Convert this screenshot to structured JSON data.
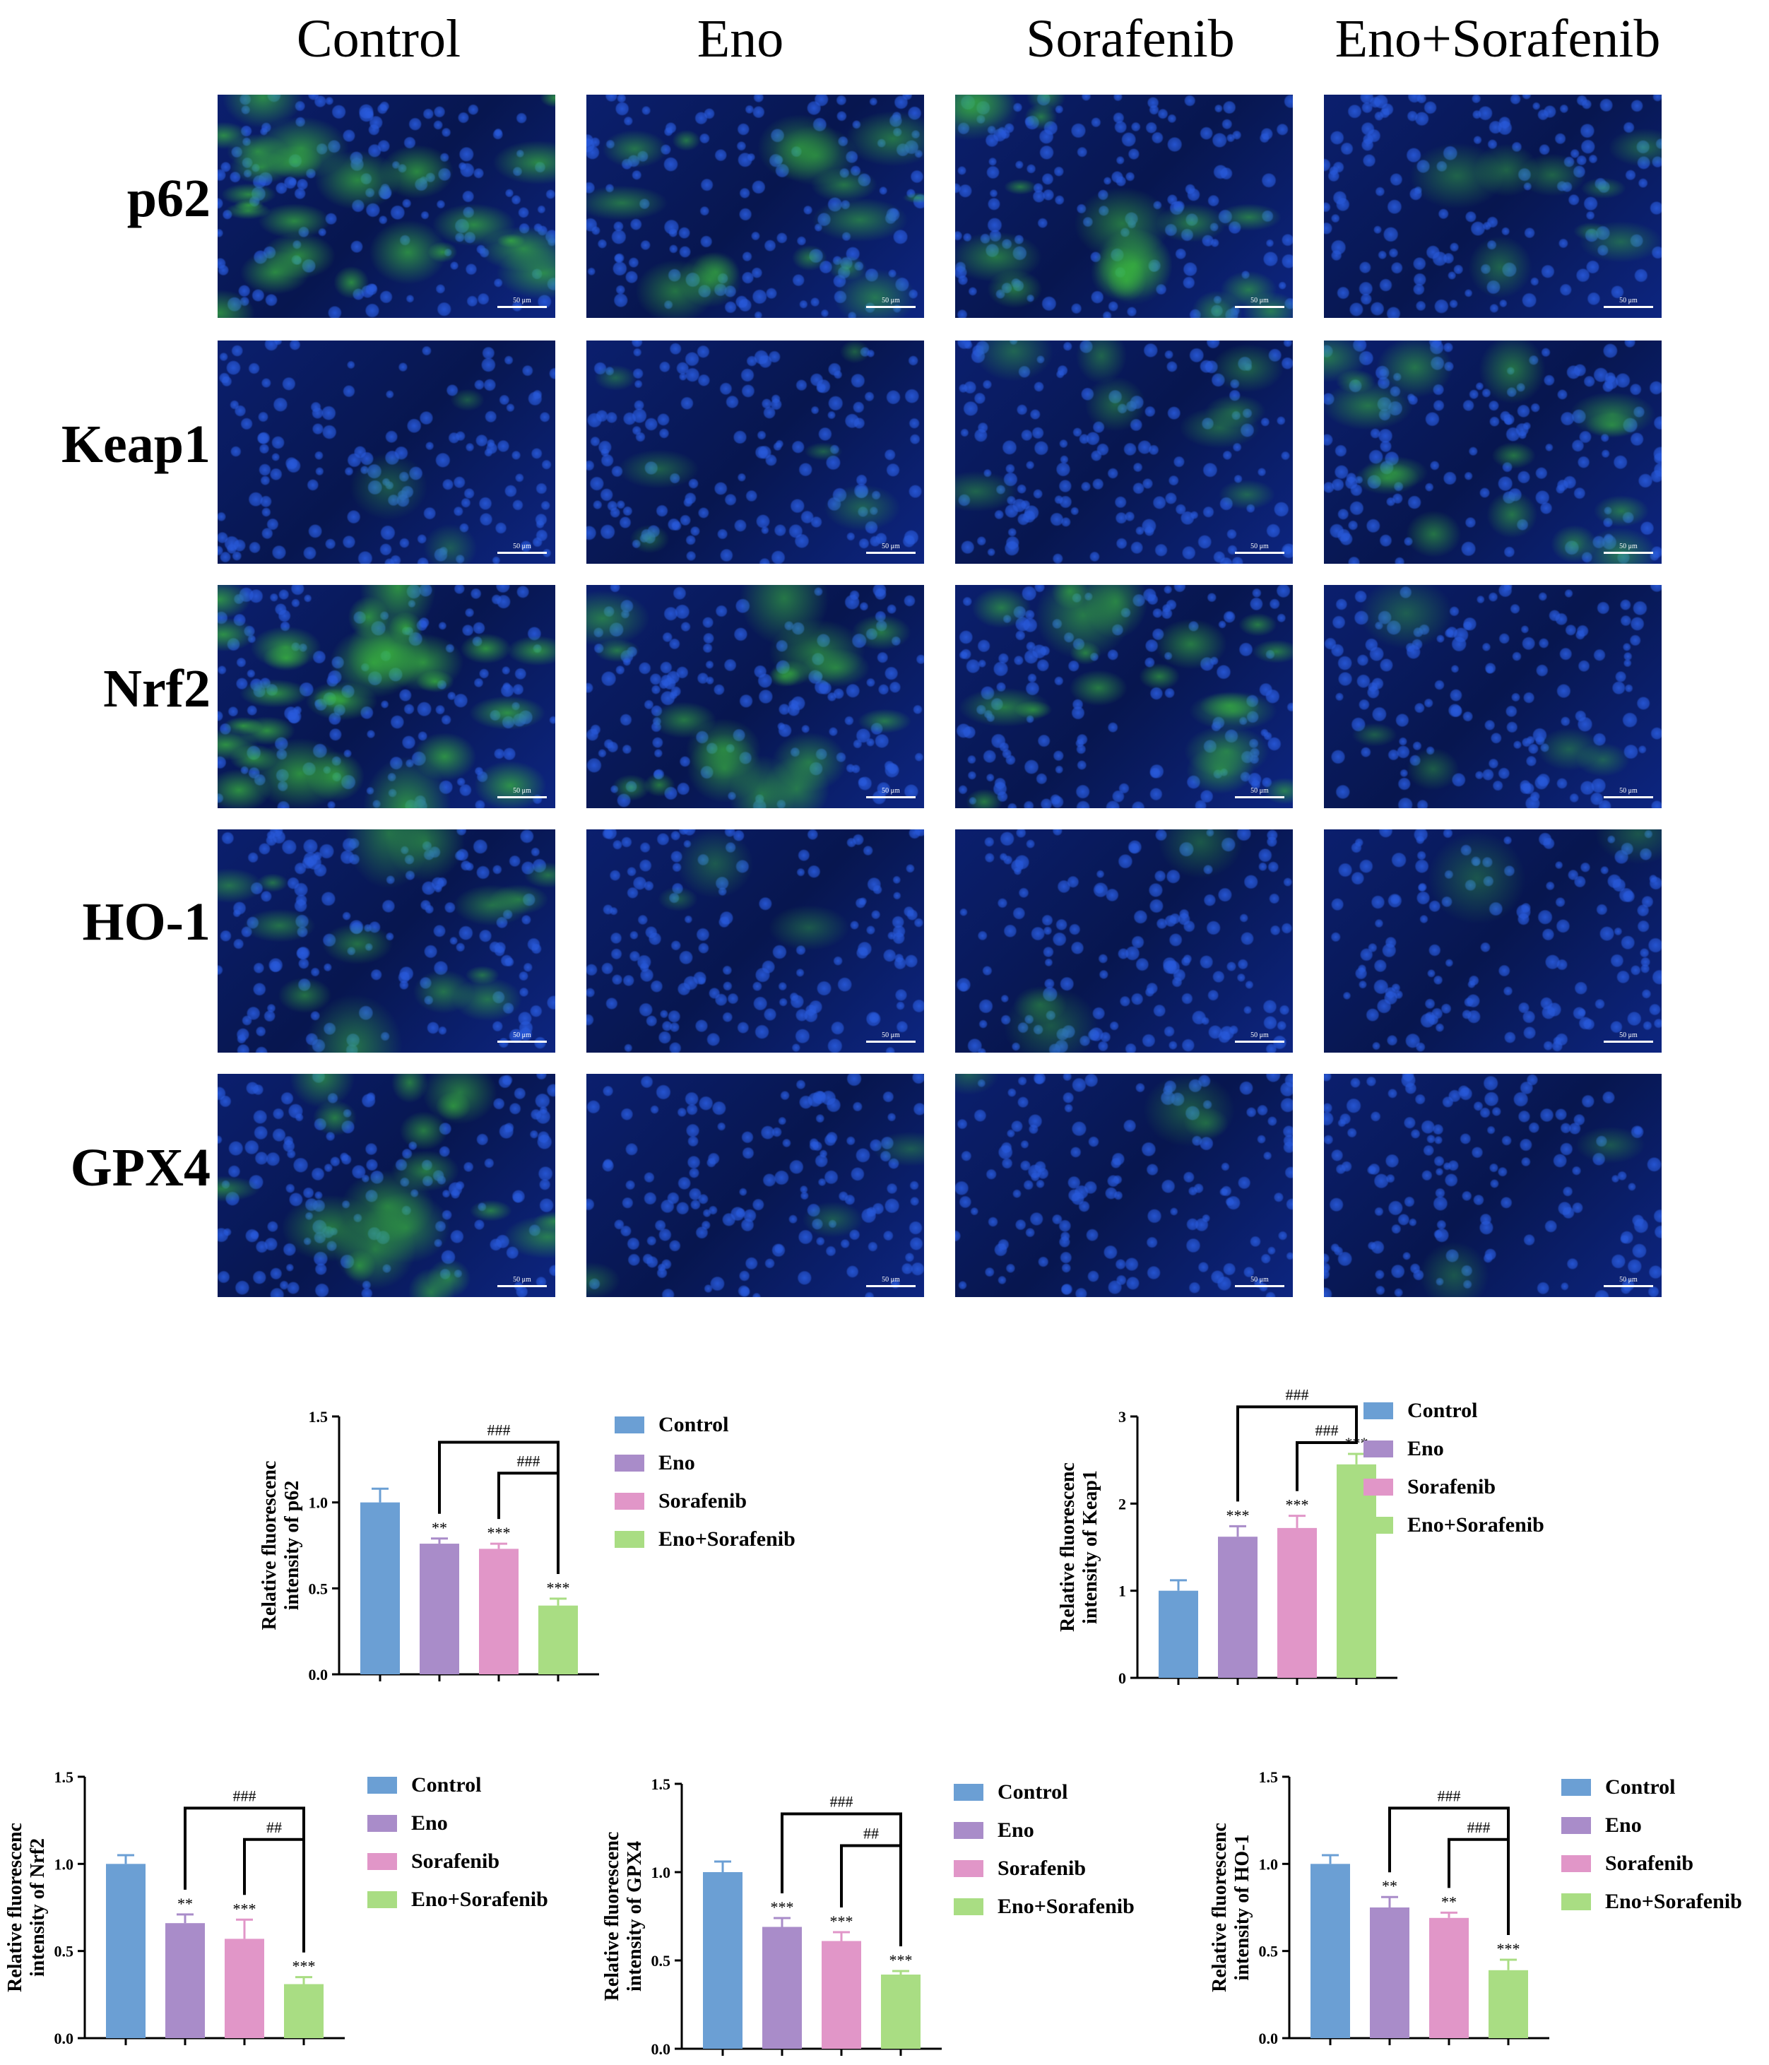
{
  "groups": [
    "Control",
    "Eno",
    "Sorafenib",
    "Eno+Sorafenib"
  ],
  "markers": [
    "p62",
    "Keap1",
    "Nrf2",
    "HO-1",
    "GPX4"
  ],
  "scale_bar_label": "50 μm",
  "colors": {
    "Control": "#6b9fd4",
    "Eno": "#a98cc9",
    "Sorafenib": "#e196c8",
    "Eno+Sorafenib": "#a9dd83",
    "nucleus": "#1f4fc4",
    "stain": "#3db43d"
  },
  "chart_data": [
    {
      "type": "bar",
      "categories": [
        "Control",
        "Eno",
        "Sorafenib",
        "Eno+Sorafenib"
      ],
      "values": [
        1.0,
        0.76,
        0.73,
        0.4
      ],
      "errors": [
        0.08,
        0.03,
        0.03,
        0.04
      ],
      "ylabel": [
        "Relative fluorescenc",
        "intensity of p62"
      ],
      "ylim": [
        0,
        1.5
      ],
      "yticks": [
        "0.0",
        "0.5",
        "1.0",
        "1.5"
      ],
      "stars": [
        "",
        "**",
        "***",
        "***"
      ],
      "brackets": [
        {
          "from": 1,
          "to": 3,
          "label": "###"
        },
        {
          "from": 2,
          "to": 3,
          "label": "###"
        }
      ],
      "legend": [
        "Control",
        "Eno",
        "Sorafenib",
        "Eno+Sorafenib"
      ]
    },
    {
      "type": "bar",
      "categories": [
        "Control",
        "Eno",
        "Sorafenib",
        "Eno+Sorafenib"
      ],
      "values": [
        1.0,
        1.62,
        1.72,
        2.45
      ],
      "errors": [
        0.12,
        0.12,
        0.14,
        0.12
      ],
      "ylabel": [
        "Relative fluorescenc",
        "intensity of Keap1"
      ],
      "ylim": [
        0,
        3
      ],
      "yticks": [
        "0",
        "1",
        "2",
        "3"
      ],
      "stars": [
        "",
        "***",
        "***",
        "***"
      ],
      "brackets": [
        {
          "from": 1,
          "to": 3,
          "label": "###"
        },
        {
          "from": 2,
          "to": 3,
          "label": "###"
        }
      ],
      "legend": [
        "Control",
        "Eno",
        "Sorafenib",
        "Eno+Sorafenib"
      ]
    },
    {
      "type": "bar",
      "categories": [
        "Control",
        "Eno",
        "Sorafenib",
        "Eno+Sorafenib"
      ],
      "values": [
        1.0,
        0.66,
        0.57,
        0.31
      ],
      "errors": [
        0.05,
        0.05,
        0.11,
        0.04
      ],
      "ylabel": [
        "Relative fluorescenc",
        "intensity of Nrf2"
      ],
      "ylim": [
        0,
        1.5
      ],
      "yticks": [
        "0.0",
        "0.5",
        "1.0",
        "1.5"
      ],
      "stars": [
        "",
        "**",
        "***",
        "***"
      ],
      "brackets": [
        {
          "from": 1,
          "to": 3,
          "label": "###"
        },
        {
          "from": 2,
          "to": 3,
          "label": "##"
        }
      ],
      "legend": [
        "Control",
        "Eno",
        "Sorafenib",
        "Eno+Sorafenib"
      ]
    },
    {
      "type": "bar",
      "categories": [
        "Control",
        "Eno",
        "Sorafenib",
        "Eno+Sorafenib"
      ],
      "values": [
        1.0,
        0.69,
        0.61,
        0.42
      ],
      "errors": [
        0.06,
        0.05,
        0.05,
        0.02
      ],
      "ylabel": [
        "Relative fluorescenc",
        "intensity of GPX4"
      ],
      "ylim": [
        0,
        1.5
      ],
      "yticks": [
        "0.0",
        "0.5",
        "1.0",
        "1.5"
      ],
      "stars": [
        "",
        "***",
        "***",
        "***"
      ],
      "brackets": [
        {
          "from": 1,
          "to": 3,
          "label": "###"
        },
        {
          "from": 2,
          "to": 3,
          "label": "##"
        }
      ],
      "legend": [
        "Control",
        "Eno",
        "Sorafenib",
        "Eno+Sorafenib"
      ]
    },
    {
      "type": "bar",
      "categories": [
        "Control",
        "Eno",
        "Sorafenib",
        "Eno+Sorafenib"
      ],
      "values": [
        1.0,
        0.75,
        0.69,
        0.39
      ],
      "errors": [
        0.05,
        0.06,
        0.03,
        0.06
      ],
      "ylabel": [
        "Relative fluorescenc",
        "intensity of HO-1"
      ],
      "ylim": [
        0,
        1.5
      ],
      "yticks": [
        "0.0",
        "0.5",
        "1.0",
        "1.5"
      ],
      "stars": [
        "",
        "**",
        "**",
        "***"
      ],
      "brackets": [
        {
          "from": 1,
          "to": 3,
          "label": "###"
        },
        {
          "from": 2,
          "to": 3,
          "label": "###"
        }
      ],
      "legend": [
        "Control",
        "Eno",
        "Sorafenib",
        "Eno+Sorafenib"
      ]
    }
  ]
}
